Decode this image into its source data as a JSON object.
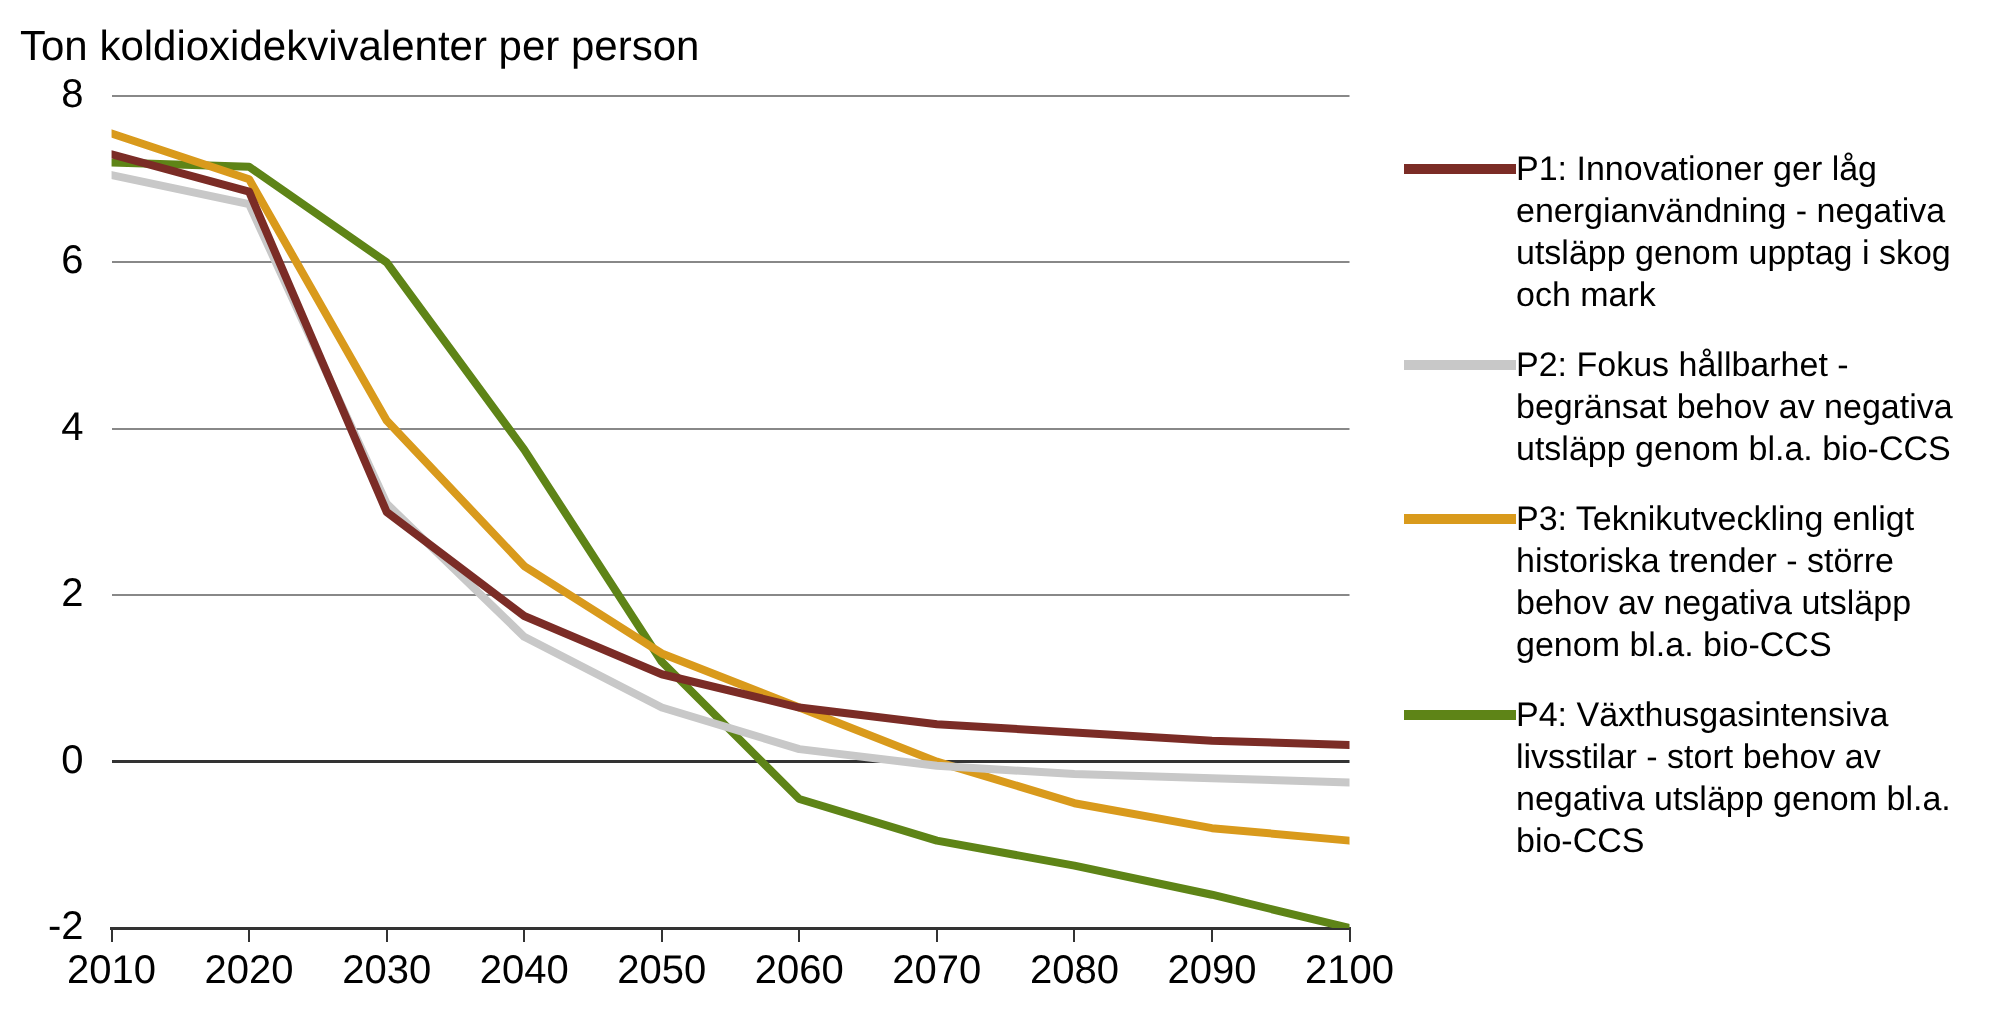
{
  "chart_data": {
    "type": "line",
    "ylabel": "Ton koldioxidekvivalenter per person",
    "x": [
      2010,
      2020,
      2030,
      2040,
      2050,
      2060,
      2070,
      2080,
      2090,
      2100
    ],
    "xlim": [
      2010,
      2100
    ],
    "xticks": [
      2010,
      2020,
      2030,
      2040,
      2050,
      2060,
      2070,
      2080,
      2090,
      2100
    ],
    "ylim": [
      -2,
      8
    ],
    "yticks": [
      -2,
      0,
      2,
      4,
      6,
      8
    ],
    "grid": "y",
    "legend": "right",
    "marker": "none",
    "line_style": "solid",
    "series": [
      {
        "name": "P1: Innovationer ger låg energianvändning - negativa utsläpp genom upptag i skog och mark",
        "color": "#7b2c26",
        "values": [
          7.3,
          6.85,
          3.0,
          1.75,
          1.05,
          0.65,
          0.45,
          0.35,
          0.25,
          0.2
        ]
      },
      {
        "name": "P2: Fokus hållbarhet - begränsat behov av negativa utsläpp genom bl.a. bio-CCS",
        "color": "#c8c8c8",
        "values": [
          7.05,
          6.7,
          3.1,
          1.5,
          0.65,
          0.15,
          -0.05,
          -0.15,
          -0.2,
          -0.25
        ]
      },
      {
        "name": "P3: Teknikutveckling enligt historiska trender - större behov av negativa utsläpp genom bl.a. bio-CCS",
        "color": "#d99a1c",
        "values": [
          7.55,
          7.0,
          4.1,
          2.35,
          1.3,
          0.65,
          0.0,
          -0.5,
          -0.8,
          -0.95
        ]
      },
      {
        "name": "P4: Växthusgasintensiva livsstilar - stort behov av negativa utsläpp genom bl.a. bio-CCS",
        "color": "#5e8417",
        "values": [
          7.2,
          7.15,
          6.0,
          3.75,
          1.2,
          -0.45,
          -0.95,
          -1.25,
          -1.6,
          -2.0
        ]
      }
    ]
  }
}
